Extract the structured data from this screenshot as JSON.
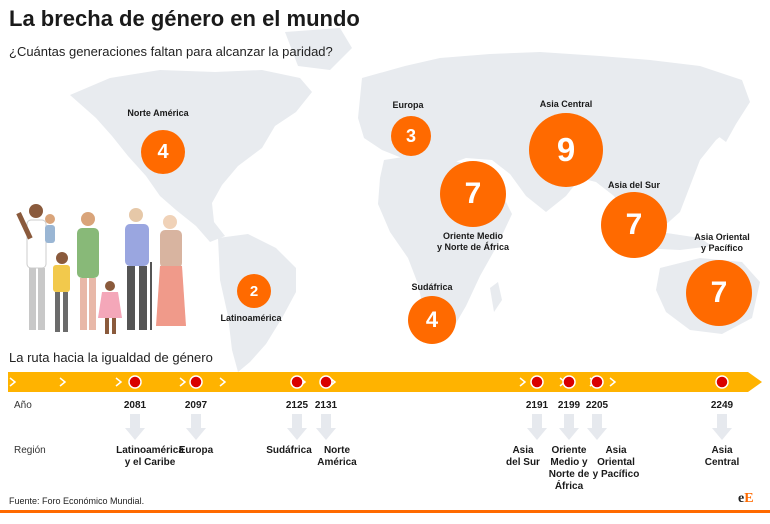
{
  "title": "La brecha de género en el mundo",
  "subtitle": "¿Cuántas generaciones faltan para alcanzar la paridad?",
  "timeline_title": "La ruta hacia la igualdad de género",
  "row_labels": {
    "year": "Año",
    "region": "Región"
  },
  "source": "Fuente: Foro Económico Mundial.",
  "logo": {
    "part1": "e",
    "part2": "E"
  },
  "colors": {
    "accent": "#ff6a00",
    "timeline": "#ffb300",
    "milestone": "#d90000",
    "map": "#e8ebef"
  },
  "chart_data": [
    {
      "type": "bubble-map",
      "regions": [
        {
          "label": "Norte América",
          "generations": "4"
        },
        {
          "label": "Europa",
          "generations": "3"
        },
        {
          "label": "Asia Central",
          "generations": "9"
        },
        {
          "label": "Oriente Medio y Norte de África",
          "generations": "7"
        },
        {
          "label": "Asia del Sur",
          "generations": "7"
        },
        {
          "label": "Asia Oriental y Pacífico",
          "generations": "7"
        },
        {
          "label": "Latinoamérica",
          "generations": "2"
        },
        {
          "label": "Sudáfrica",
          "generations": "4"
        }
      ]
    },
    {
      "type": "timeline",
      "milestones": [
        {
          "year": "2081",
          "region": "Latinoamérica y el Caribe"
        },
        {
          "year": "2097",
          "region": "Europa"
        },
        {
          "year": "2125",
          "region": "Sudáfrica"
        },
        {
          "year": "2131",
          "region": "Norte América"
        },
        {
          "year": "2191",
          "region": "Asia del Sur"
        },
        {
          "year": "2199",
          "region": "Oriente Medio y Norte de África"
        },
        {
          "year": "2205",
          "region": "Asia Oriental y Pacífico"
        },
        {
          "year": "2249",
          "region": "Asia Central"
        }
      ]
    }
  ]
}
